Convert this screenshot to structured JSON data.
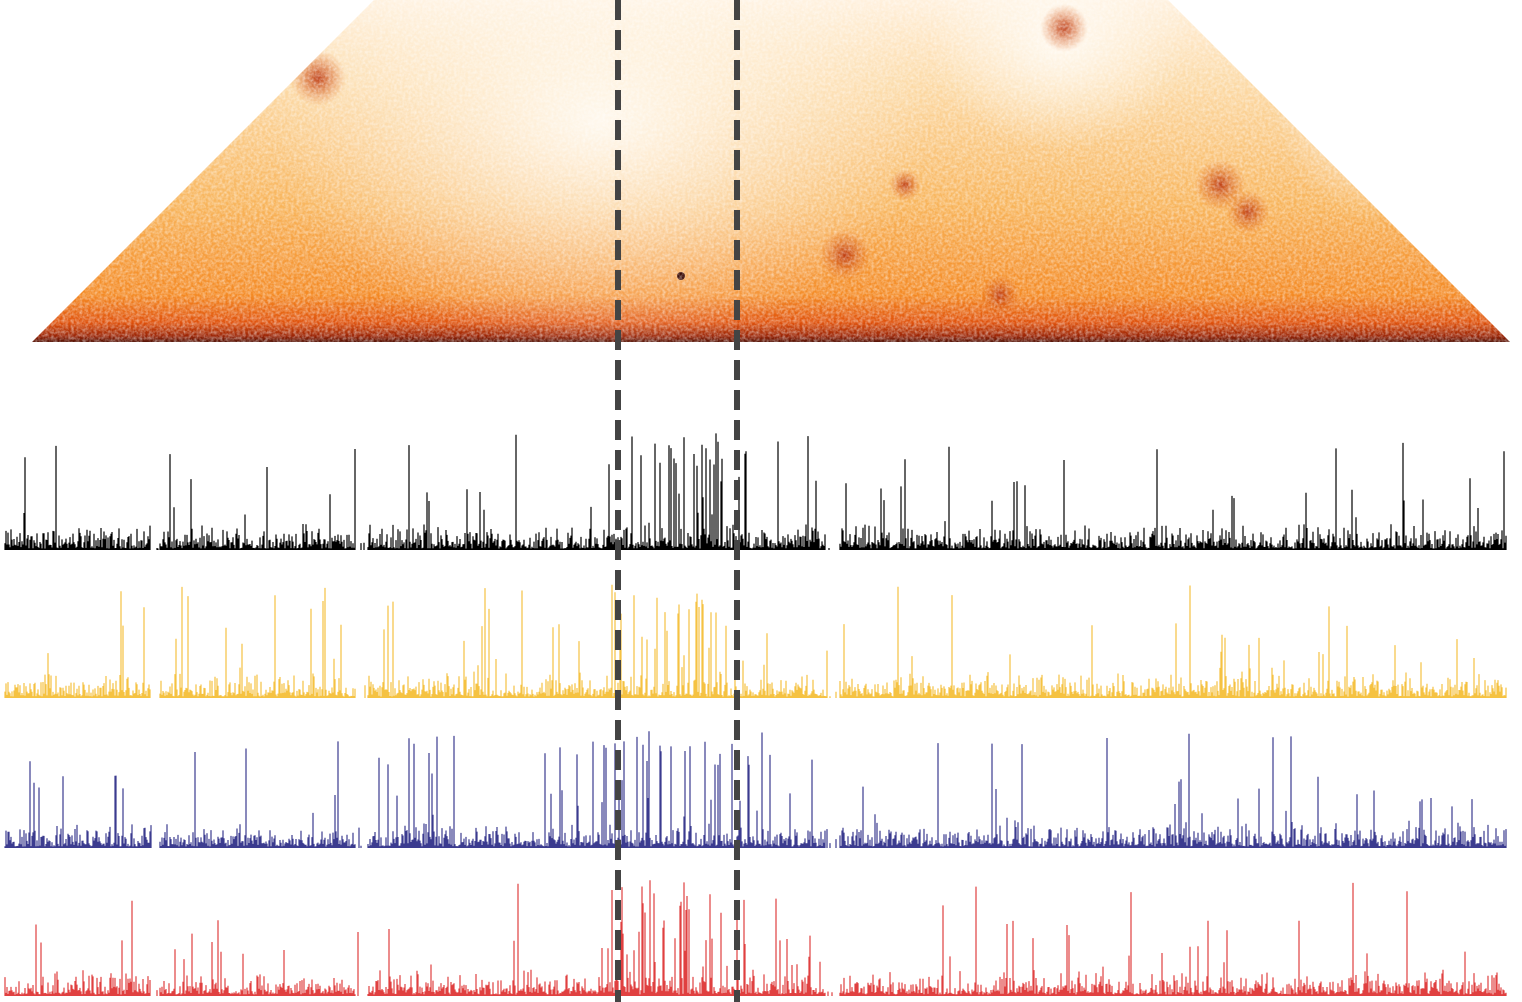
{
  "tracks": [
    {
      "color": "#000000"
    },
    {
      "color": "#f5c242"
    },
    {
      "color": "#3b3b8f"
    },
    {
      "color": "#e04040"
    }
  ]
}
